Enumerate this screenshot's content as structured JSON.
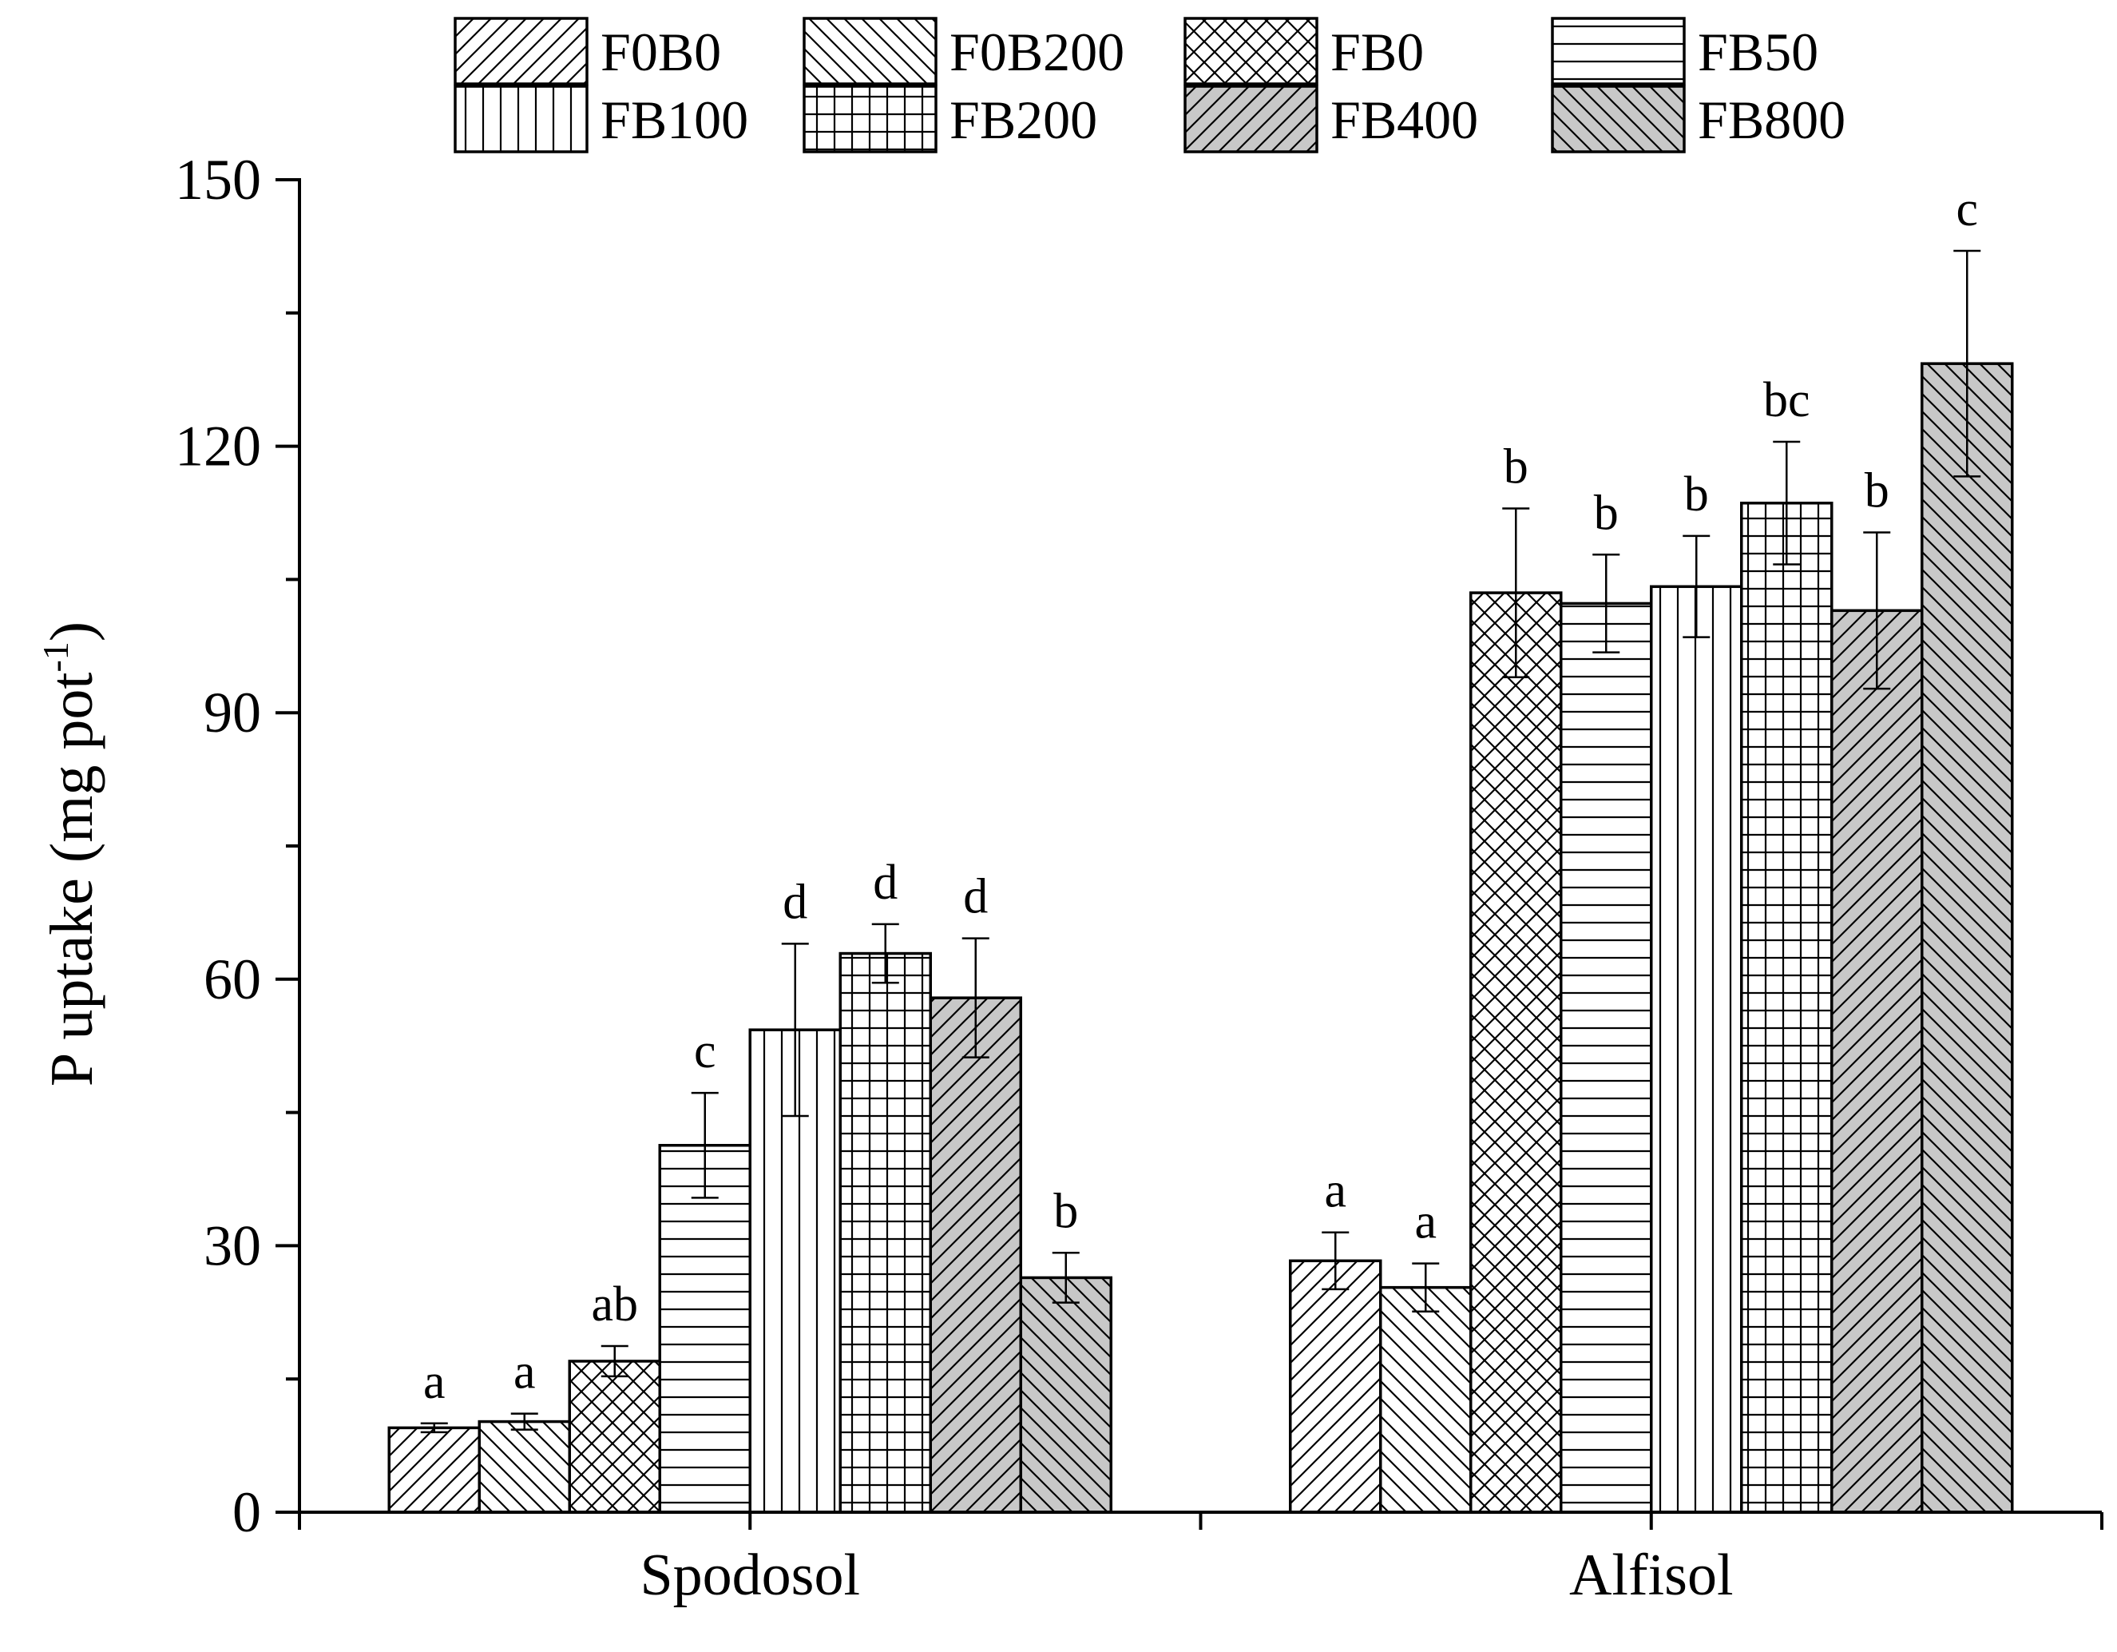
{
  "chart_data": {
    "type": "bar",
    "title": "",
    "xlabel": "",
    "ylabel": "P uptake (mg pot",
    "ylabel_sup": "-1",
    "ylabel_close": ")",
    "ylim": [
      0,
      150
    ],
    "yticks": [
      0,
      30,
      60,
      90,
      120,
      150
    ],
    "categories": [
      "Spodosol",
      "Alfisol"
    ],
    "legend_position": "top",
    "grid": false,
    "series": [
      {
        "name": "F0B0",
        "pattern": "diag-right",
        "fill": "#ffffff",
        "values": [
          9.5,
          28.3
        ],
        "errors": [
          0.5,
          3.2
        ],
        "labels": [
          "a",
          "a"
        ]
      },
      {
        "name": "F0B200",
        "pattern": "diag-left",
        "fill": "#ffffff",
        "values": [
          10.2,
          25.3
        ],
        "errors": [
          0.9,
          2.7
        ],
        "labels": [
          "a",
          "a"
        ]
      },
      {
        "name": "FB0",
        "pattern": "cross-hatch",
        "fill": "#ffffff",
        "values": [
          17.0,
          103.5
        ],
        "errors": [
          1.7,
          9.5
        ],
        "labels": [
          "ab",
          "b"
        ]
      },
      {
        "name": "FB50",
        "pattern": "horizontal",
        "fill": "#ffffff",
        "values": [
          41.3,
          102.3
        ],
        "errors": [
          5.9,
          5.5
        ],
        "labels": [
          "c",
          "b"
        ]
      },
      {
        "name": "FB100",
        "pattern": "vertical",
        "fill": "#ffffff",
        "values": [
          54.3,
          104.2
        ],
        "errors": [
          9.7,
          5.7
        ],
        "labels": [
          "d",
          "b"
        ]
      },
      {
        "name": "FB200",
        "pattern": "grid",
        "fill": "#ffffff",
        "values": [
          62.9,
          113.6
        ],
        "errors": [
          3.3,
          6.9
        ],
        "labels": [
          "d",
          "bc"
        ]
      },
      {
        "name": "FB400",
        "pattern": "diag-right",
        "fill": "#c8c8c8",
        "values": [
          57.9,
          101.5
        ],
        "errors": [
          6.7,
          8.8
        ],
        "labels": [
          "d",
          "b"
        ]
      },
      {
        "name": "FB800",
        "pattern": "diag-left",
        "fill": "#c8c8c8",
        "values": [
          26.4,
          129.3
        ],
        "errors": [
          2.8,
          12.7
        ],
        "labels": [
          "b",
          "c"
        ]
      }
    ]
  }
}
